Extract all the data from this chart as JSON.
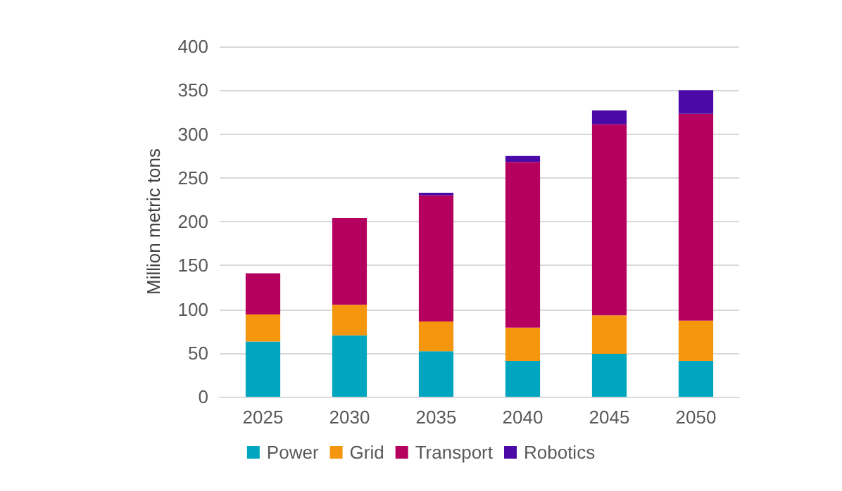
{
  "chart_data": {
    "type": "bar",
    "stacked": true,
    "ylabel": "Million metric tons",
    "categories": [
      "2025",
      "2030",
      "2035",
      "2040",
      "2045",
      "2050"
    ],
    "series": [
      {
        "name": "Power",
        "color": "#00a5c0",
        "values": [
          63,
          70,
          52,
          41,
          49,
          41
        ]
      },
      {
        "name": "Grid",
        "color": "#f5960f",
        "values": [
          31,
          35,
          34,
          38,
          44,
          46
        ]
      },
      {
        "name": "Transport",
        "color": "#b5005f",
        "values": [
          47,
          99,
          144,
          189,
          218,
          236
        ]
      },
      {
        "name": "Robotics",
        "color": "#4b0aa8",
        "values": [
          0,
          0,
          3,
          7,
          16,
          27
        ]
      }
    ],
    "ylim": [
      0,
      400
    ],
    "yticks": [
      0,
      50,
      100,
      150,
      200,
      250,
      300,
      350,
      400
    ],
    "grid": "y",
    "legend": "bottom"
  }
}
